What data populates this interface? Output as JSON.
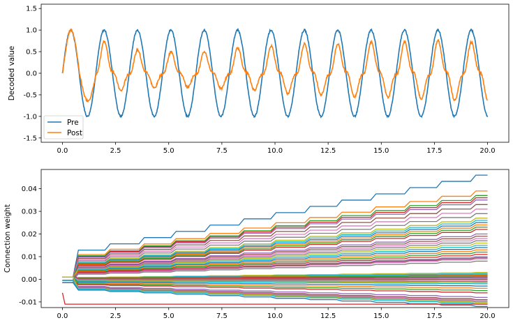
{
  "colors": {
    "pre": "#1f77b4",
    "post": "#ff7f0e"
  },
  "chart_data": [
    {
      "type": "line",
      "title": "",
      "xlabel": "",
      "ylabel": "Decoded value",
      "xlim": [
        -1.0,
        21.0
      ],
      "ylim": [
        -1.6,
        1.6
      ],
      "xticks": [
        "0.0",
        "2.5",
        "5.0",
        "7.5",
        "10.0",
        "12.5",
        "15.0",
        "17.5",
        "20.0"
      ],
      "yticks": [
        "-1.5",
        "-1.0",
        "-0.5",
        "0.0",
        "0.5",
        "1.0",
        "1.5"
      ],
      "grid": false,
      "legend": {
        "position": "lower-left",
        "entries": [
          "Pre",
          "Post"
        ]
      },
      "series": [
        {
          "name": "Pre",
          "color": "#1f77b4",
          "kind": "sine",
          "amplitude": 1.0,
          "period": 1.57,
          "x_range": [
            0,
            20
          ]
        },
        {
          "name": "Post",
          "color": "#ff7f0e",
          "peaks": [
            1.1,
            0.82,
            0.6,
            0.55,
            0.55,
            0.65,
            0.7,
            0.75,
            0.75,
            0.8,
            0.8,
            0.85,
            0.8
          ],
          "troughs": [
            -0.7,
            -0.45,
            -0.38,
            -0.36,
            -0.4,
            -0.43,
            -0.52,
            -0.55,
            -0.6,
            -0.62,
            -0.67,
            -0.7,
            -0.72
          ],
          "x_range": [
            0,
            20
          ]
        }
      ]
    },
    {
      "type": "line",
      "title": "",
      "xlabel": "",
      "ylabel": "Connection weight",
      "xlim": [
        -1.0,
        21.0
      ],
      "ylim": [
        -0.0125,
        0.0485
      ],
      "xticks": [
        "0.0",
        "2.5",
        "5.0",
        "7.5",
        "10.0",
        "12.5",
        "15.0",
        "17.5",
        "20.0"
      ],
      "yticks": [
        "-0.01",
        "0.00",
        "0.01",
        "0.02",
        "0.03",
        "0.04"
      ],
      "grid": false,
      "step_times": [
        0.5,
        2.0,
        3.6,
        5.1,
        6.7,
        8.3,
        9.8,
        11.4,
        12.9,
        14.5,
        16.1,
        17.6,
        19.2
      ],
      "series_final_values": [
        0.046,
        0.039,
        0.037,
        0.036,
        0.035,
        0.033,
        0.031,
        0.029,
        0.027,
        0.026,
        0.025,
        0.024,
        0.023,
        0.022,
        0.02,
        0.019,
        0.018,
        0.017,
        0.016,
        0.015,
        0.014,
        0.013,
        0.012,
        0.011,
        0.01,
        0.0095,
        0.009,
        0.008,
        0.003,
        0.0025,
        0.002,
        0.0018,
        0.0015,
        0.001,
        0.0005,
        0.0,
        -0.0005,
        -0.001,
        -0.0015,
        -0.002,
        -0.003,
        -0.004,
        -0.005,
        -0.006,
        -0.008,
        -0.009,
        -0.0095,
        -0.01,
        -0.0105,
        -0.011,
        -0.012
      ],
      "series_colors": [
        "#1f77b4",
        "#ff7f0e",
        "#2ca02c",
        "#d62728",
        "#9467bd",
        "#8c564b",
        "#e377c2",
        "#7f7f7f",
        "#bcbd22",
        "#17becf"
      ]
    }
  ]
}
